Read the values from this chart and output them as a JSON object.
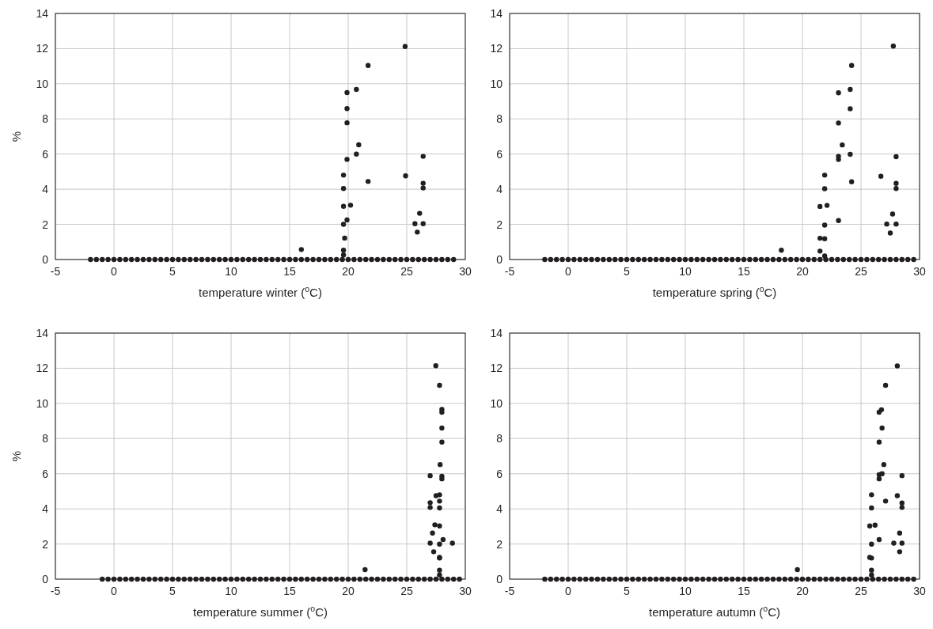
{
  "chart_data": [
    {
      "type": "scatter",
      "xlabel": "temperature winter ($^{o}$C)",
      "ylabel": "%",
      "xlim": [
        -5,
        30
      ],
      "xticks": [
        -5,
        0,
        5,
        10,
        15,
        20,
        25,
        30
      ],
      "ylim": [
        0,
        14
      ],
      "yticks": [
        0,
        2,
        4,
        6,
        8,
        10,
        12,
        14
      ],
      "grid": true,
      "marker": "circle",
      "series": [
        {
          "color": "#231f20",
          "x": [
            24.86,
            21.7,
            20.7,
            19.9,
            19.9,
            19.9,
            20.9,
            20.7,
            19.9,
            26.4,
            19.6,
            24.9,
            21.7,
            26.4,
            26.4,
            19.6,
            19.6,
            20.2,
            26.1,
            19.9,
            19.6,
            25.7,
            26.4,
            25.9,
            19.7,
            16.0,
            19.6,
            19.6
          ],
          "values": [
            12.12,
            11.04,
            9.68,
            9.5,
            8.59,
            7.78,
            6.53,
            6.0,
            5.7,
            5.87,
            4.8,
            4.76,
            4.44,
            4.34,
            4.07,
            4.04,
            3.03,
            3.09,
            2.63,
            2.25,
            2.0,
            2.04,
            2.04,
            1.56,
            1.22,
            0.57,
            0.53,
            0.26
          ]
        },
        {
          "color": "#231f20",
          "x": [
            -2,
            -1.5,
            -1,
            -0.5,
            0,
            0.5,
            1,
            1.5,
            2,
            2.5,
            3,
            3.5,
            4,
            4.5,
            5,
            5.5,
            6,
            6.5,
            7,
            7.5,
            8,
            8.5,
            9,
            9.5,
            10,
            10.5,
            11,
            11.5,
            12,
            12.5,
            13,
            13.5,
            14,
            14.5,
            15,
            15.5,
            16,
            16.5,
            17,
            17.5,
            18,
            18.5,
            19,
            19.5,
            20,
            20.5,
            21,
            21.5,
            22,
            22.5,
            23,
            23.5,
            24,
            24.5,
            25,
            25.5,
            26,
            26.5,
            27,
            27.5,
            28,
            28.5,
            29
          ],
          "values": [
            0,
            0,
            0,
            0,
            0,
            0,
            0,
            0,
            0,
            0,
            0,
            0,
            0,
            0,
            0,
            0,
            0,
            0,
            0,
            0,
            0,
            0,
            0,
            0,
            0,
            0,
            0,
            0,
            0,
            0,
            0,
            0,
            0,
            0,
            0,
            0,
            0,
            0,
            0,
            0,
            0,
            0,
            0,
            0,
            0,
            0,
            0,
            0,
            0,
            0,
            0,
            0,
            0,
            0,
            0,
            0,
            0,
            0,
            0,
            0,
            0,
            0,
            0
          ]
        }
      ]
    },
    {
      "type": "scatter",
      "xlabel": "temperature spring ($^{o}$C)",
      "xlim": [
        -5,
        30
      ],
      "xticks": [
        -5,
        0,
        5,
        10,
        15,
        20,
        25,
        30
      ],
      "ylim": [
        0,
        14
      ],
      "yticks": [
        0,
        2,
        4,
        6,
        8,
        10,
        12,
        14
      ],
      "grid": true,
      "marker": "circle",
      "series": [
        {
          "color": "#231f20",
          "x": [
            27.76,
            24.2,
            24.08,
            23.08,
            24.08,
            23.08,
            23.4,
            24.08,
            23.08,
            23.08,
            28.0,
            21.9,
            26.7,
            24.2,
            28.0,
            28.0,
            21.9,
            21.5,
            22.1,
            27.7,
            23.08,
            21.9,
            27.2,
            28.0,
            27.5,
            21.5,
            21.9,
            18.2,
            21.5,
            21.9
          ],
          "values": [
            12.14,
            11.04,
            9.68,
            9.49,
            8.58,
            7.77,
            6.52,
            5.99,
            5.87,
            5.69,
            5.85,
            4.8,
            4.74,
            4.42,
            4.33,
            4.04,
            4.03,
            3.02,
            3.08,
            2.59,
            2.22,
            1.96,
            2.02,
            2.02,
            1.51,
            1.21,
            1.18,
            0.53,
            0.48,
            0.2
          ]
        },
        {
          "color": "#231f20",
          "x": [
            -2,
            -1.5,
            -1,
            -0.5,
            0,
            0.5,
            1,
            1.5,
            2,
            2.5,
            3,
            3.5,
            4,
            4.5,
            5,
            5.5,
            6,
            6.5,
            7,
            7.5,
            8,
            8.5,
            9,
            9.5,
            10,
            10.5,
            11,
            11.5,
            12,
            12.5,
            13,
            13.5,
            14,
            14.5,
            15,
            15.5,
            16,
            16.5,
            17,
            17.5,
            18,
            18.5,
            19,
            19.5,
            20,
            20.5,
            21,
            21.5,
            22,
            22.5,
            23,
            23.5,
            24,
            24.5,
            25,
            25.5,
            26,
            26.5,
            27,
            27.5,
            28,
            28.5,
            29,
            29.5
          ],
          "values": [
            0,
            0,
            0,
            0,
            0,
            0,
            0,
            0,
            0,
            0,
            0,
            0,
            0,
            0,
            0,
            0,
            0,
            0,
            0,
            0,
            0,
            0,
            0,
            0,
            0,
            0,
            0,
            0,
            0,
            0,
            0,
            0,
            0,
            0,
            0,
            0,
            0,
            0,
            0,
            0,
            0,
            0,
            0,
            0,
            0,
            0,
            0,
            0,
            0,
            0,
            0,
            0,
            0,
            0,
            0,
            0,
            0,
            0,
            0,
            0,
            0,
            0,
            0,
            0
          ]
        }
      ]
    },
    {
      "type": "scatter",
      "xlabel": "temperature summer ($^{o}$C)",
      "ylabel": "%",
      "xlim": [
        -5,
        30
      ],
      "xticks": [
        -5,
        0,
        5,
        10,
        15,
        20,
        25,
        30
      ],
      "ylim": [
        0,
        14
      ],
      "yticks": [
        0,
        2,
        4,
        6,
        8,
        10,
        12,
        14
      ],
      "grid": true,
      "marker": "circle",
      "series": [
        {
          "color": "#231f20",
          "x": [
            27.48,
            27.8,
            28.0,
            28.0,
            28.0,
            28.0,
            27.85,
            27.0,
            28.0,
            28.0,
            27.5,
            27.8,
            27.0,
            27.0,
            27.8,
            27.8,
            27.4,
            27.8,
            27.2,
            27.0,
            27.8,
            28.1,
            28.9,
            27.3,
            27.8,
            27.8,
            21.44,
            27.8,
            27.8
          ],
          "values": [
            12.14,
            11.03,
            9.66,
            9.5,
            8.6,
            7.8,
            6.52,
            5.89,
            5.85,
            5.71,
            4.75,
            4.8,
            4.35,
            4.08,
            4.44,
            4.05,
            3.09,
            3.03,
            2.62,
            2.05,
            1.99,
            2.25,
            2.05,
            1.56,
            1.24,
            1.2,
            0.54,
            0.51,
            0.24
          ]
        },
        {
          "color": "#231f20",
          "x": [
            -1,
            -0.5,
            0,
            0.5,
            1,
            1.5,
            2,
            2.5,
            3,
            3.5,
            4,
            4.5,
            5,
            5.5,
            6,
            6.5,
            7,
            7.5,
            8,
            8.5,
            9,
            9.5,
            10,
            10.5,
            11,
            11.5,
            12,
            12.5,
            13,
            13.5,
            14,
            14.5,
            15,
            15.5,
            16,
            16.5,
            17,
            17.5,
            18,
            18.5,
            19,
            19.5,
            20,
            20.5,
            21,
            21.5,
            22,
            22.5,
            23,
            23.5,
            24,
            24.5,
            25,
            25.5,
            26,
            26.5,
            27,
            27.5,
            28,
            28.5,
            29,
            29.5
          ],
          "values": [
            0,
            0,
            0,
            0,
            0,
            0,
            0,
            0,
            0,
            0,
            0,
            0,
            0,
            0,
            0,
            0,
            0,
            0,
            0,
            0,
            0,
            0,
            0,
            0,
            0,
            0,
            0,
            0,
            0,
            0,
            0,
            0,
            0,
            0,
            0,
            0,
            0,
            0,
            0,
            0,
            0,
            0,
            0,
            0,
            0,
            0,
            0,
            0,
            0,
            0,
            0,
            0,
            0,
            0,
            0,
            0,
            0,
            0,
            0,
            0,
            0,
            0
          ]
        }
      ]
    },
    {
      "type": "scatter",
      "xlabel": "temperature autumn ($^{o}$C)",
      "xlim": [
        -5,
        30
      ],
      "xticks": [
        -5,
        0,
        5,
        10,
        15,
        20,
        25,
        30
      ],
      "ylim": [
        0,
        14
      ],
      "yticks": [
        0,
        2,
        4,
        6,
        8,
        10,
        12,
        14
      ],
      "grid": true,
      "marker": "circle",
      "series": [
        {
          "color": "#231f20",
          "x": [
            28.1,
            27.1,
            26.55,
            26.75,
            26.8,
            26.55,
            26.95,
            26.55,
            26.55,
            26.8,
            28.5,
            25.9,
            25.9,
            28.1,
            27.1,
            28.5,
            28.5,
            25.75,
            26.2,
            28.3,
            26.55,
            25.9,
            27.8,
            28.5,
            28.3,
            25.75,
            25.9,
            19.57,
            25.9,
            25.9
          ],
          "values": [
            12.13,
            11.03,
            9.5,
            9.64,
            8.6,
            7.8,
            6.52,
            5.94,
            5.71,
            6.0,
            5.89,
            4.8,
            4.05,
            4.75,
            4.44,
            4.33,
            4.08,
            3.03,
            3.07,
            2.62,
            2.25,
            1.99,
            2.05,
            2.05,
            1.56,
            1.24,
            1.2,
            0.54,
            0.51,
            0.24
          ]
        },
        {
          "color": "#231f20",
          "x": [
            -2,
            -1.5,
            -1,
            -0.5,
            0,
            0.5,
            1,
            1.5,
            2,
            2.5,
            3,
            3.5,
            4,
            4.5,
            5,
            5.5,
            6,
            6.5,
            7,
            7.5,
            8,
            8.5,
            9,
            9.5,
            10,
            10.5,
            11,
            11.5,
            12,
            12.5,
            13,
            13.5,
            14,
            14.5,
            15,
            15.5,
            16,
            16.5,
            17,
            17.5,
            18,
            18.5,
            19,
            19.5,
            20,
            20.5,
            21,
            21.5,
            22,
            22.5,
            23,
            23.5,
            24,
            24.5,
            25,
            25.5,
            26,
            26.5,
            27,
            27.5,
            28,
            28.5,
            29,
            29.5
          ],
          "values": [
            0,
            0,
            0,
            0,
            0,
            0,
            0,
            0,
            0,
            0,
            0,
            0,
            0,
            0,
            0,
            0,
            0,
            0,
            0,
            0,
            0,
            0,
            0,
            0,
            0,
            0,
            0,
            0,
            0,
            0,
            0,
            0,
            0,
            0,
            0,
            0,
            0,
            0,
            0,
            0,
            0,
            0,
            0,
            0,
            0,
            0,
            0,
            0,
            0,
            0,
            0,
            0,
            0,
            0,
            0,
            0,
            0,
            0,
            0,
            0,
            0,
            0,
            0,
            0
          ]
        }
      ]
    }
  ]
}
